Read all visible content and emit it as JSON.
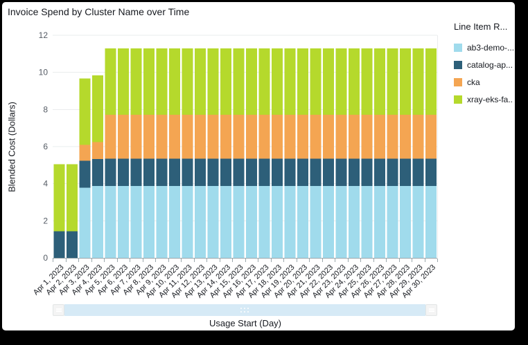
{
  "window": {
    "title": "Invoice Spend by Cluster Name over Time"
  },
  "legend": {
    "title": "Line Item R..."
  },
  "axes": {
    "x_title": "Usage Start (Day)",
    "y_title": "Blended Cost (Dollars)"
  },
  "colors": {
    "ab3": "#a0dbec",
    "catalog": "#2d5f79",
    "cka": "#f4a552",
    "xray": "#b5d92c",
    "gridline": "#eaeced",
    "axis_line": "#9ba7ab",
    "tick_label": "#16191f",
    "ytick_label": "#545b64",
    "slider_track": "#d6eaf6"
  },
  "chart_data": {
    "type": "bar",
    "stacked": true,
    "title": "Invoice Spend by Cluster Name over Time",
    "xlabel": "Usage Start (Day)",
    "ylabel": "Blended Cost (Dollars)",
    "ylim": [
      0,
      12
    ],
    "yticks": [
      0,
      2,
      4,
      6,
      8,
      10,
      12
    ],
    "grid": "horizontal",
    "legend_position": "right",
    "legend_title": "Line Item R...",
    "categories": [
      "Apr 1, 2023",
      "Apr 2, 2023",
      "Apr 3, 2023",
      "Apr 4, 2023",
      "Apr 5, 2023",
      "Apr 6, 2023",
      "Apr 7, 2023",
      "Apr 8, 2023",
      "Apr 9, 2023",
      "Apr 10, 2023",
      "Apr 11, 2023",
      "Apr 12, 2023",
      "Apr 13, 2023",
      "Apr 14, 2023",
      "Apr 15, 2023",
      "Apr 16, 2023",
      "Apr 17, 2023",
      "Apr 18, 2023",
      "Apr 19, 2023",
      "Apr 20, 2023",
      "Apr 21, 2023",
      "Apr 22, 2023",
      "Apr 23, 2023",
      "Apr 24, 2023",
      "Apr 25, 2023",
      "Apr 26, 2023",
      "Apr 27, 2023",
      "Apr 28, 2023",
      "Apr 29, 2023",
      "Apr 30, 2023"
    ],
    "series": [
      {
        "name": "ab3-demo-...",
        "color": "#a0dbec",
        "values": [
          0,
          0,
          3.79,
          3.87,
          3.87,
          3.87,
          3.87,
          3.87,
          3.87,
          3.87,
          3.87,
          3.87,
          3.87,
          3.87,
          3.87,
          3.87,
          3.87,
          3.87,
          3.87,
          3.87,
          3.87,
          3.87,
          3.87,
          3.87,
          3.87,
          3.87,
          3.87,
          3.87,
          3.87,
          3.87
        ]
      },
      {
        "name": "catalog-ap...",
        "color": "#2d5f79",
        "values": [
          1.43,
          1.43,
          1.45,
          1.45,
          1.47,
          1.47,
          1.47,
          1.47,
          1.47,
          1.47,
          1.47,
          1.47,
          1.47,
          1.47,
          1.47,
          1.47,
          1.47,
          1.47,
          1.47,
          1.47,
          1.47,
          1.47,
          1.47,
          1.47,
          1.47,
          1.47,
          1.47,
          1.47,
          1.47,
          1.47
        ]
      },
      {
        "name": "cka",
        "color": "#f4a552",
        "values": [
          0,
          0,
          0.85,
          0.93,
          2.37,
          2.37,
          2.37,
          2.37,
          2.37,
          2.37,
          2.37,
          2.37,
          2.37,
          2.37,
          2.37,
          2.37,
          2.37,
          2.37,
          2.37,
          2.37,
          2.37,
          2.37,
          2.37,
          2.37,
          2.37,
          2.37,
          2.37,
          2.37,
          2.37,
          2.37
        ]
      },
      {
        "name": "xray-eks-fa...",
        "color": "#b5d92c",
        "values": [
          3.62,
          3.62,
          3.59,
          3.58,
          3.58,
          3.58,
          3.58,
          3.58,
          3.58,
          3.58,
          3.58,
          3.58,
          3.58,
          3.58,
          3.58,
          3.58,
          3.58,
          3.58,
          3.58,
          3.58,
          3.58,
          3.58,
          3.58,
          3.58,
          3.58,
          3.58,
          3.58,
          3.58,
          3.58,
          3.58
        ]
      }
    ]
  }
}
